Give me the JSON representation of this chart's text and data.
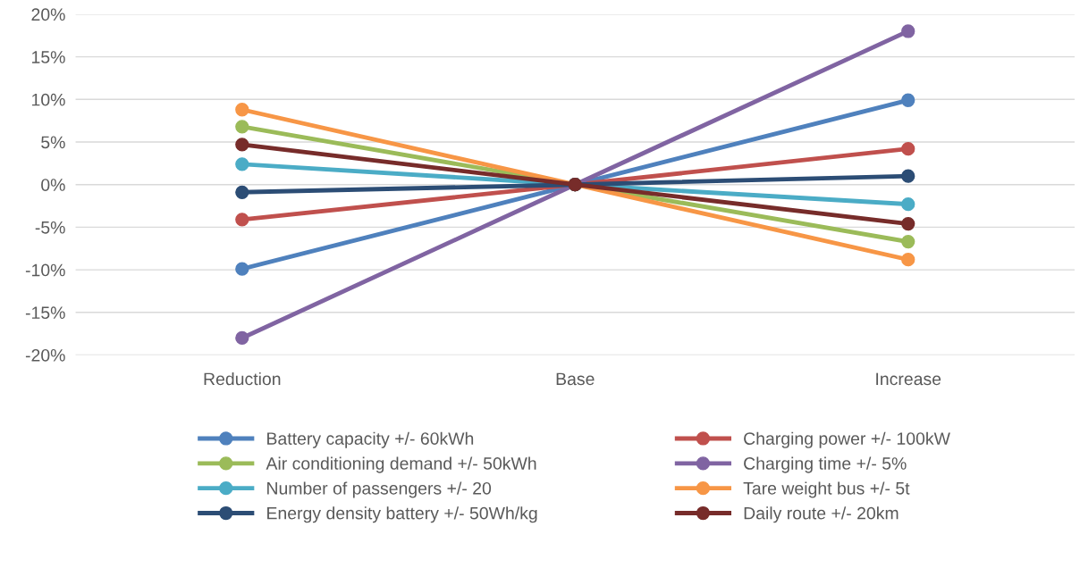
{
  "chart_data": {
    "type": "line",
    "categories": [
      "Reduction",
      "Base",
      "Increase"
    ],
    "series": [
      {
        "name": "Battery capacity +/- 60kWh",
        "color": "#4f81bd",
        "values": [
          -9.9,
          0,
          9.9
        ]
      },
      {
        "name": "Charging power +/- 100kW",
        "color": "#c0504d",
        "values": [
          -4.1,
          0,
          4.2
        ]
      },
      {
        "name": "Air conditioning demand +/- 50kWh",
        "color": "#9bbb59",
        "values": [
          6.8,
          0,
          -6.7
        ]
      },
      {
        "name": "Charging time +/- 5%",
        "color": "#8064a2",
        "values": [
          -18.0,
          0,
          18.0
        ]
      },
      {
        "name": "Number of passengers +/- 20",
        "color": "#4bacc6",
        "values": [
          2.4,
          0,
          -2.3
        ]
      },
      {
        "name": "Tare weight bus +/- 5t",
        "color": "#f79646",
        "values": [
          8.8,
          0,
          -8.8
        ]
      },
      {
        "name": "Energy density battery +/- 50Wh/kg",
        "color": "#2c4d75",
        "values": [
          -0.9,
          0,
          1.0
        ]
      },
      {
        "name": "Daily route +/- 20km",
        "color": "#772c2a",
        "values": [
          4.7,
          0,
          -4.6
        ]
      }
    ],
    "ylim": [
      -20,
      20
    ],
    "yticks": [
      {
        "value": -20,
        "label": "-20%"
      },
      {
        "value": -15,
        "label": "-15%"
      },
      {
        "value": -10,
        "label": "-10%"
      },
      {
        "value": -5,
        "label": "-5%"
      },
      {
        "value": 0,
        "label": "0%"
      },
      {
        "value": 5,
        "label": "5%"
      },
      {
        "value": 10,
        "label": "10%"
      },
      {
        "value": 15,
        "label": "15%"
      },
      {
        "value": 20,
        "label": "20%"
      }
    ],
    "grid": "y",
    "legend": "bottom",
    "marker": "circle",
    "line_style": "solid"
  }
}
